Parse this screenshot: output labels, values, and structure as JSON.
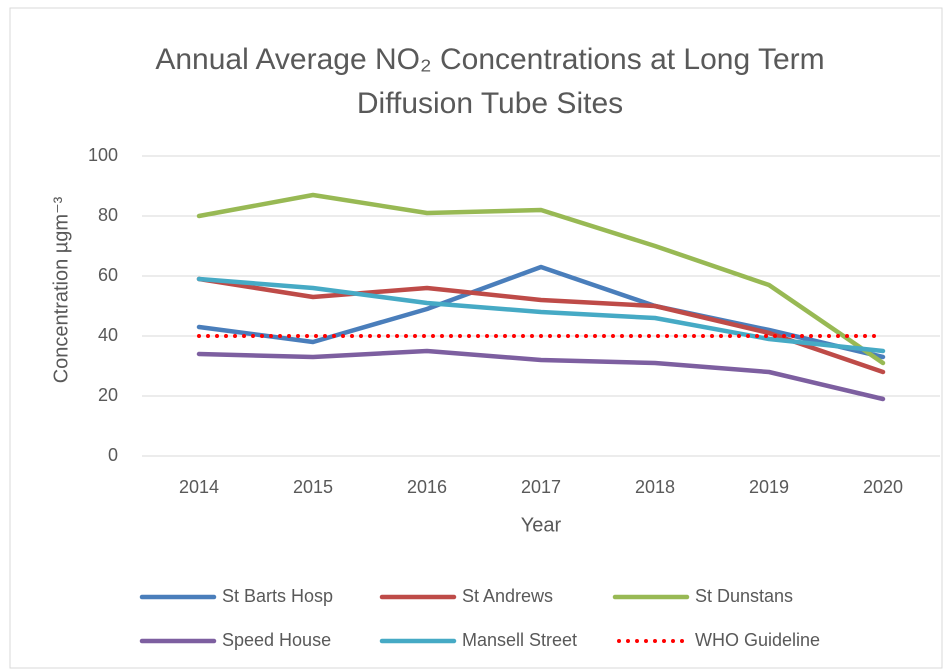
{
  "chart_data": {
    "type": "line",
    "title": "Annual Average NO₂ Concentrations at Long Term Diffusion Tube Sites",
    "xlabel": "Year",
    "ylabel": "Concentration µgm⁻³",
    "categories": [
      "2014",
      "2015",
      "2016",
      "2017",
      "2018",
      "2019",
      "2020"
    ],
    "ylim": [
      0,
      100
    ],
    "yticks": [
      0,
      20,
      40,
      60,
      80,
      100
    ],
    "grid": true,
    "legend": "bottom",
    "series": [
      {
        "name": "St Barts Hosp",
        "color": "#4a7ebb",
        "values": [
          43,
          38,
          49,
          63,
          50,
          42,
          33
        ]
      },
      {
        "name": "St Andrews",
        "color": "#be4b48",
        "values": [
          59,
          53,
          56,
          52,
          50,
          41,
          28
        ]
      },
      {
        "name": "St Dunstans",
        "color": "#98b954",
        "values": [
          80,
          87,
          81,
          82,
          70,
          57,
          31
        ]
      },
      {
        "name": "Speed House",
        "color": "#7d5fa0",
        "values": [
          34,
          33,
          35,
          32,
          31,
          28,
          19
        ]
      },
      {
        "name": "Mansell Street",
        "color": "#46aac5",
        "values": [
          59,
          56,
          51,
          48,
          46,
          39,
          35
        ]
      },
      {
        "name": "WHO Guideline",
        "color": "#ff0000",
        "style": "dotted",
        "values": [
          40,
          40,
          40,
          40,
          40,
          40,
          40
        ]
      }
    ]
  }
}
